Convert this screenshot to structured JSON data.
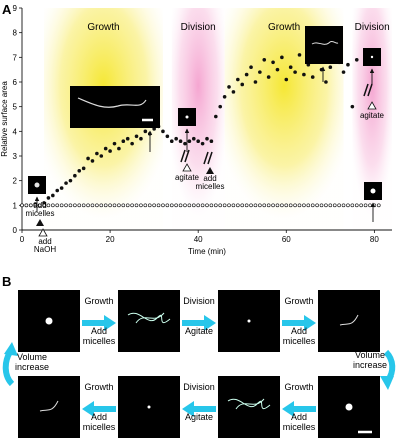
{
  "panel_a": {
    "letter": "A",
    "phases": [
      "Growth",
      "Division",
      "Growth",
      "Division"
    ],
    "annotations": {
      "add_micelles": "add\nmicelles",
      "add_naoh": "add\nNaOH",
      "agitate": "agitate"
    }
  },
  "panel_b": {
    "letter": "B",
    "row1": {
      "steps": [
        {
          "top": "Growth",
          "bottom": "Add\nmicelles"
        },
        {
          "top": "Division",
          "bottom": "Agitate"
        },
        {
          "top": "Growth",
          "bottom": "Add\nmicelles"
        }
      ]
    },
    "left_side": "Volume\nincrease",
    "right_side": "Volume\nincrease",
    "row2": {
      "steps": [
        {
          "top": "Growth",
          "bottom": "Add\nmicelles"
        },
        {
          "top": "Division",
          "bottom": "Agitate"
        },
        {
          "top": "Growth",
          "bottom": "Add\nmicelles"
        }
      ]
    }
  },
  "colors": {
    "growth_band": "#f7e84a",
    "division_band": "#f7b8da",
    "arrow": "#27c6ea",
    "filled_marker": "#111111"
  },
  "chart_data": {
    "type": "scatter",
    "xlabel": "Time (min)",
    "ylabel": "Relative surface area",
    "xlim": [
      0,
      84
    ],
    "ylim": [
      0,
      9
    ],
    "xticks": [
      0,
      20,
      40,
      60,
      80
    ],
    "yticks": [
      0,
      1,
      2,
      3,
      4,
      5,
      6,
      7,
      8,
      9
    ],
    "phase_bands": [
      {
        "label": "Growth",
        "start": 5,
        "end": 32
      },
      {
        "label": "Division",
        "start": 34,
        "end": 46
      },
      {
        "label": "Growth",
        "start": 46,
        "end": 73
      },
      {
        "label": "Division",
        "start": 75,
        "end": 84
      }
    ],
    "series": [
      {
        "marker": "filled",
        "x": [
          0,
          1,
          2,
          3,
          4,
          5,
          6,
          7,
          8,
          9,
          10,
          11,
          12,
          13,
          14,
          15,
          16,
          17,
          18,
          19,
          20,
          21,
          22,
          23,
          24,
          25,
          26,
          27,
          28,
          29,
          30,
          31,
          32,
          33,
          34,
          35,
          36,
          37,
          38,
          39,
          40,
          41,
          42,
          43,
          44,
          45,
          46,
          47,
          48,
          49,
          50,
          51,
          52,
          53,
          54,
          55,
          56,
          57,
          58,
          59,
          60,
          61,
          62,
          63,
          64,
          65,
          66,
          67,
          68,
          69,
          70,
          71,
          72,
          73,
          74,
          75,
          76
        ],
        "y": [
          1.0,
          1.0,
          1.0,
          1.05,
          1.0,
          1.1,
          1.3,
          1.4,
          1.6,
          1.7,
          1.9,
          2.0,
          2.2,
          2.4,
          2.5,
          2.9,
          2.8,
          3.1,
          3.0,
          3.3,
          3.2,
          3.5,
          3.3,
          3.6,
          3.7,
          3.5,
          3.8,
          3.7,
          4.0,
          3.9,
          4.1,
          4.2,
          4.0,
          3.8,
          3.6,
          3.7,
          3.6,
          3.5,
          3.6,
          3.7,
          3.6,
          3.5,
          3.7,
          3.6,
          4.6,
          5.0,
          5.4,
          5.8,
          5.6,
          6.1,
          5.9,
          6.3,
          6.6,
          6.0,
          6.4,
          6.9,
          6.2,
          6.8,
          6.5,
          7.0,
          6.1,
          6.6,
          6.4,
          7.1,
          6.3,
          6.7,
          6.2,
          6.9,
          6.5,
          6.0,
          6.6,
          7.0,
          6.8,
          6.4,
          6.7,
          5.0,
          6.9
        ]
      },
      {
        "marker": "open",
        "x": [
          0,
          1,
          2,
          3,
          4,
          5,
          6,
          7,
          8,
          9,
          10,
          11,
          12,
          13,
          14,
          15,
          16,
          17,
          18,
          19,
          20,
          21,
          22,
          23,
          24,
          25,
          26,
          27,
          28,
          29,
          30,
          31,
          32,
          33,
          34,
          35,
          36,
          37,
          38,
          39,
          40,
          41,
          42,
          43,
          44,
          45,
          46,
          47,
          48,
          49,
          50,
          51,
          52,
          53,
          54,
          55,
          56,
          57,
          58,
          59,
          60,
          61,
          62,
          63,
          64,
          65,
          66,
          67,
          68,
          69,
          70,
          71,
          72,
          73,
          74,
          75,
          76,
          77,
          78,
          79,
          80,
          81
        ],
        "y": [
          1.0,
          1.0,
          1.0,
          1.0,
          1.0,
          1.0,
          1.0,
          1.0,
          1.0,
          1.0,
          1.0,
          1.0,
          1.0,
          1.0,
          1.0,
          1.0,
          1.0,
          1.0,
          1.0,
          1.0,
          1.0,
          1.0,
          1.0,
          1.0,
          1.0,
          1.0,
          1.0,
          1.0,
          1.0,
          1.0,
          1.0,
          1.0,
          1.0,
          1.0,
          1.0,
          1.0,
          1.0,
          1.0,
          1.0,
          1.0,
          1.0,
          1.0,
          1.0,
          1.0,
          1.0,
          1.0,
          1.0,
          1.0,
          1.0,
          1.0,
          1.0,
          1.0,
          1.0,
          1.0,
          1.0,
          1.0,
          1.0,
          1.0,
          1.0,
          1.0,
          1.0,
          1.0,
          1.0,
          1.0,
          1.0,
          1.0,
          1.0,
          1.0,
          1.0,
          1.0,
          1.0,
          1.0,
          1.0,
          1.0,
          1.0,
          1.0,
          1.0,
          1.0,
          1.0,
          1.0,
          1.0,
          1.0
        ]
      }
    ]
  }
}
